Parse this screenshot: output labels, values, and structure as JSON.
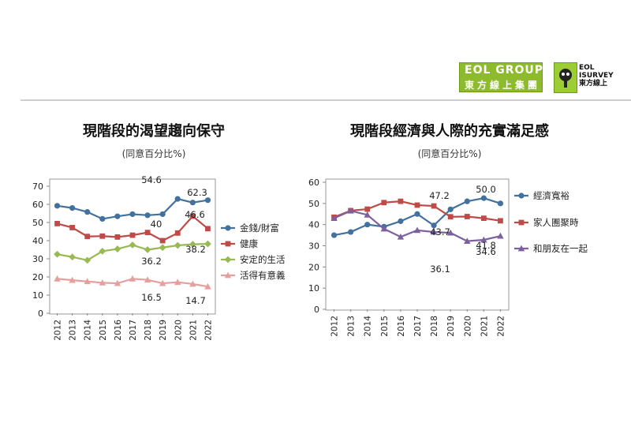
{
  "branding": {
    "group_logo_line1": "EOL GROUP",
    "group_logo_line2": "東方線上集團",
    "survey_logo_line1": "EOL",
    "survey_logo_line2": "ISURVEY",
    "survey_logo_line3": "東方線上"
  },
  "chart_data": [
    {
      "type": "line",
      "title": "現階段的渴望趨向保守",
      "subtitle": "(同意百分比%)",
      "categories": [
        "2012",
        "2013",
        "2014",
        "2015",
        "2016",
        "2017",
        "2018",
        "2019",
        "2020",
        "2021",
        "2022"
      ],
      "ylim": [
        0,
        70
      ],
      "yticks": [
        0,
        10,
        20,
        30,
        40,
        50,
        60,
        70
      ],
      "grid": false,
      "legend": "right",
      "series": [
        {
          "name": "金錢/財富",
          "color": "#41719c",
          "marker": "circle",
          "values": [
            59.2,
            58.0,
            55.8,
            52.0,
            53.4,
            54.6,
            54.0,
            54.6,
            63.0,
            61.0,
            62.3
          ]
        },
        {
          "name": "健康",
          "color": "#be4b48",
          "marker": "square",
          "values": [
            49.4,
            47.2,
            42.3,
            42.5,
            42.0,
            43.0,
            44.5,
            40.0,
            44.2,
            53.5,
            46.6
          ]
        },
        {
          "name": "安定的生活",
          "color": "#98b954",
          "marker": "diamond",
          "values": [
            32.5,
            31.0,
            29.2,
            34.2,
            35.4,
            37.6,
            35.0,
            36.2,
            37.4,
            38.0,
            38.2
          ]
        },
        {
          "name": "活得有意義",
          "color": "#e59f9d",
          "marker": "triangle",
          "values": [
            19.0,
            18.2,
            17.5,
            16.8,
            16.5,
            19.0,
            18.4,
            16.5,
            17.1,
            16.1,
            14.7
          ]
        }
      ],
      "annotations": [
        {
          "text": "54.6",
          "category": "2019"
        },
        {
          "text": "62.3",
          "category": "2022"
        },
        {
          "text": "40",
          "category": "2019"
        },
        {
          "text": "46.6",
          "category": "2022"
        },
        {
          "text": "36.2",
          "category": "2019"
        },
        {
          "text": "38.2",
          "category": "2022"
        },
        {
          "text": "16.5",
          "category": "2019"
        },
        {
          "text": "14.7",
          "category": "2022"
        }
      ]
    },
    {
      "type": "line",
      "title": "現階段經濟與人際的充實滿足感",
      "subtitle": "(同意百分比%)",
      "categories": [
        "2012",
        "2013",
        "2014",
        "2015",
        "2016",
        "2017",
        "2018",
        "2019",
        "2020",
        "2021",
        "2022"
      ],
      "ylim": [
        0,
        60
      ],
      "yticks": [
        0,
        10,
        20,
        30,
        40,
        50,
        60
      ],
      "grid": false,
      "legend": "right",
      "series": [
        {
          "name": "經濟寬裕",
          "color": "#41719c",
          "marker": "circle",
          "values": [
            35.0,
            36.5,
            40.0,
            39.0,
            41.6,
            45.0,
            39.6,
            47.2,
            51.0,
            52.5,
            50.0
          ]
        },
        {
          "name": "家人團聚時",
          "color": "#be4b48",
          "marker": "square",
          "values": [
            43.5,
            46.6,
            47.3,
            50.4,
            51.0,
            49.2,
            48.8,
            43.7,
            43.8,
            43.0,
            41.8
          ]
        },
        {
          "name": "和朋友在一起",
          "color": "#7d60a0",
          "marker": "triangle",
          "values": [
            43.0,
            46.5,
            44.6,
            38.0,
            34.2,
            37.3,
            36.5,
            36.1,
            32.2,
            32.8,
            34.6
          ]
        }
      ],
      "annotations": [
        {
          "text": "47.2",
          "category": "2019"
        },
        {
          "text": "50.0",
          "category": "2022"
        },
        {
          "text": "43.7",
          "category": "2019"
        },
        {
          "text": "41.8",
          "category": "2022"
        },
        {
          "text": "36.1",
          "category": "2019"
        },
        {
          "text": "34.6",
          "category": "2022"
        }
      ]
    }
  ]
}
